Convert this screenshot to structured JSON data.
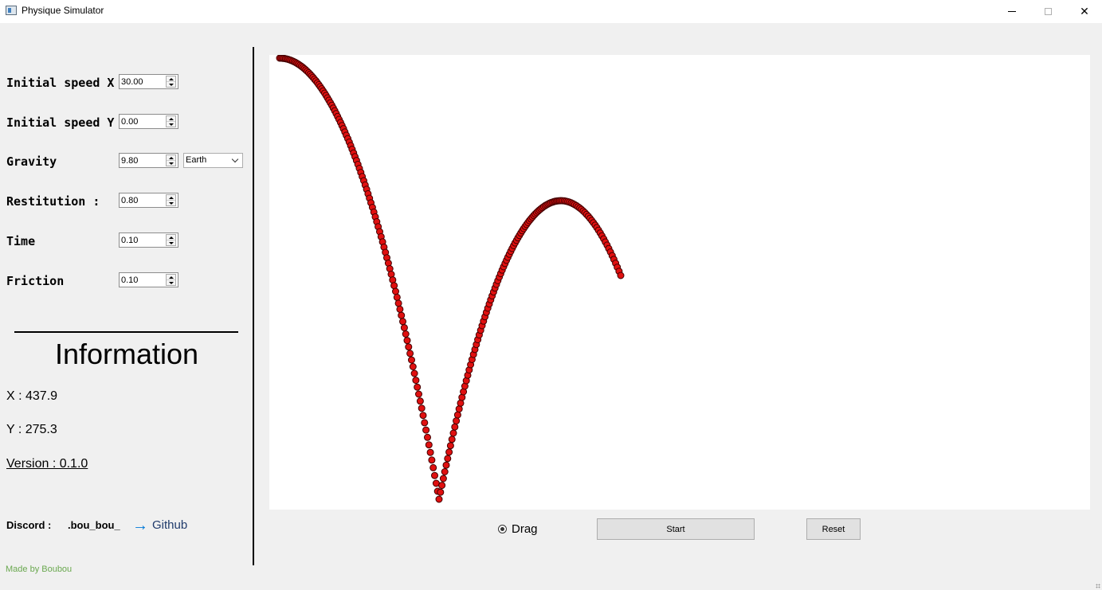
{
  "window": {
    "title": "Physique Simulator",
    "minimize_icon": "minimize-icon",
    "maximize_icon": "maximize-icon",
    "close_icon": "close-icon",
    "close_glyph": "✕"
  },
  "params": {
    "speed_x": {
      "label": "Initial speed X",
      "value": "30.00"
    },
    "speed_y": {
      "label": "Initial speed Y",
      "value": "0.00"
    },
    "gravity": {
      "label": "Gravity",
      "value": "9.80",
      "preset": "Earth"
    },
    "restitution": {
      "label": "Restitution :",
      "value": "0.80"
    },
    "time": {
      "label": "Time",
      "value": "0.10"
    },
    "friction": {
      "label": "Friction",
      "value": "0.10"
    }
  },
  "info": {
    "title": "Information",
    "x": "X : 437.9",
    "y": "Y : 275.3",
    "version": "Version : 0.1.0"
  },
  "footer": {
    "discord_label": "Discord :",
    "discord_user": ".bou_bou_",
    "github_arrow": "→",
    "github_label": "Github",
    "made_by": "Made by Boubou"
  },
  "controls": {
    "drag_label": "Drag",
    "drag_checked": true,
    "start_label": "Start",
    "reset_label": "Reset"
  },
  "colors": {
    "ball_fill": "#e01010",
    "ball_stroke": "#400000",
    "accent": "#0078d7",
    "made_by": "#6aa84f"
  }
}
